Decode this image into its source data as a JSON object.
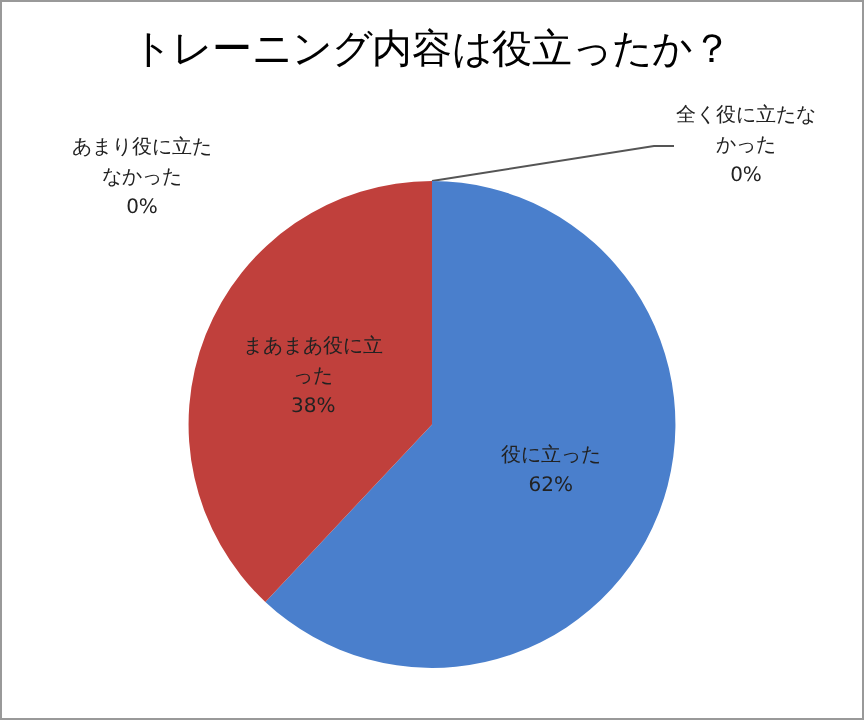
{
  "chart_data": {
    "type": "pie",
    "title": "トレーニング内容は役立ったか？",
    "categories": [
      "役に立った",
      "まあまあ役に立った",
      "あまり役に立たなかった",
      "全く役に立たなかった"
    ],
    "values": [
      62,
      38,
      0,
      0
    ],
    "colors": [
      "#4a7fcc",
      "#c0403c",
      "#9bbb59",
      "#8064a2"
    ],
    "value_labels": [
      "62%",
      "38%",
      "0%",
      "0%"
    ],
    "legend": false
  }
}
